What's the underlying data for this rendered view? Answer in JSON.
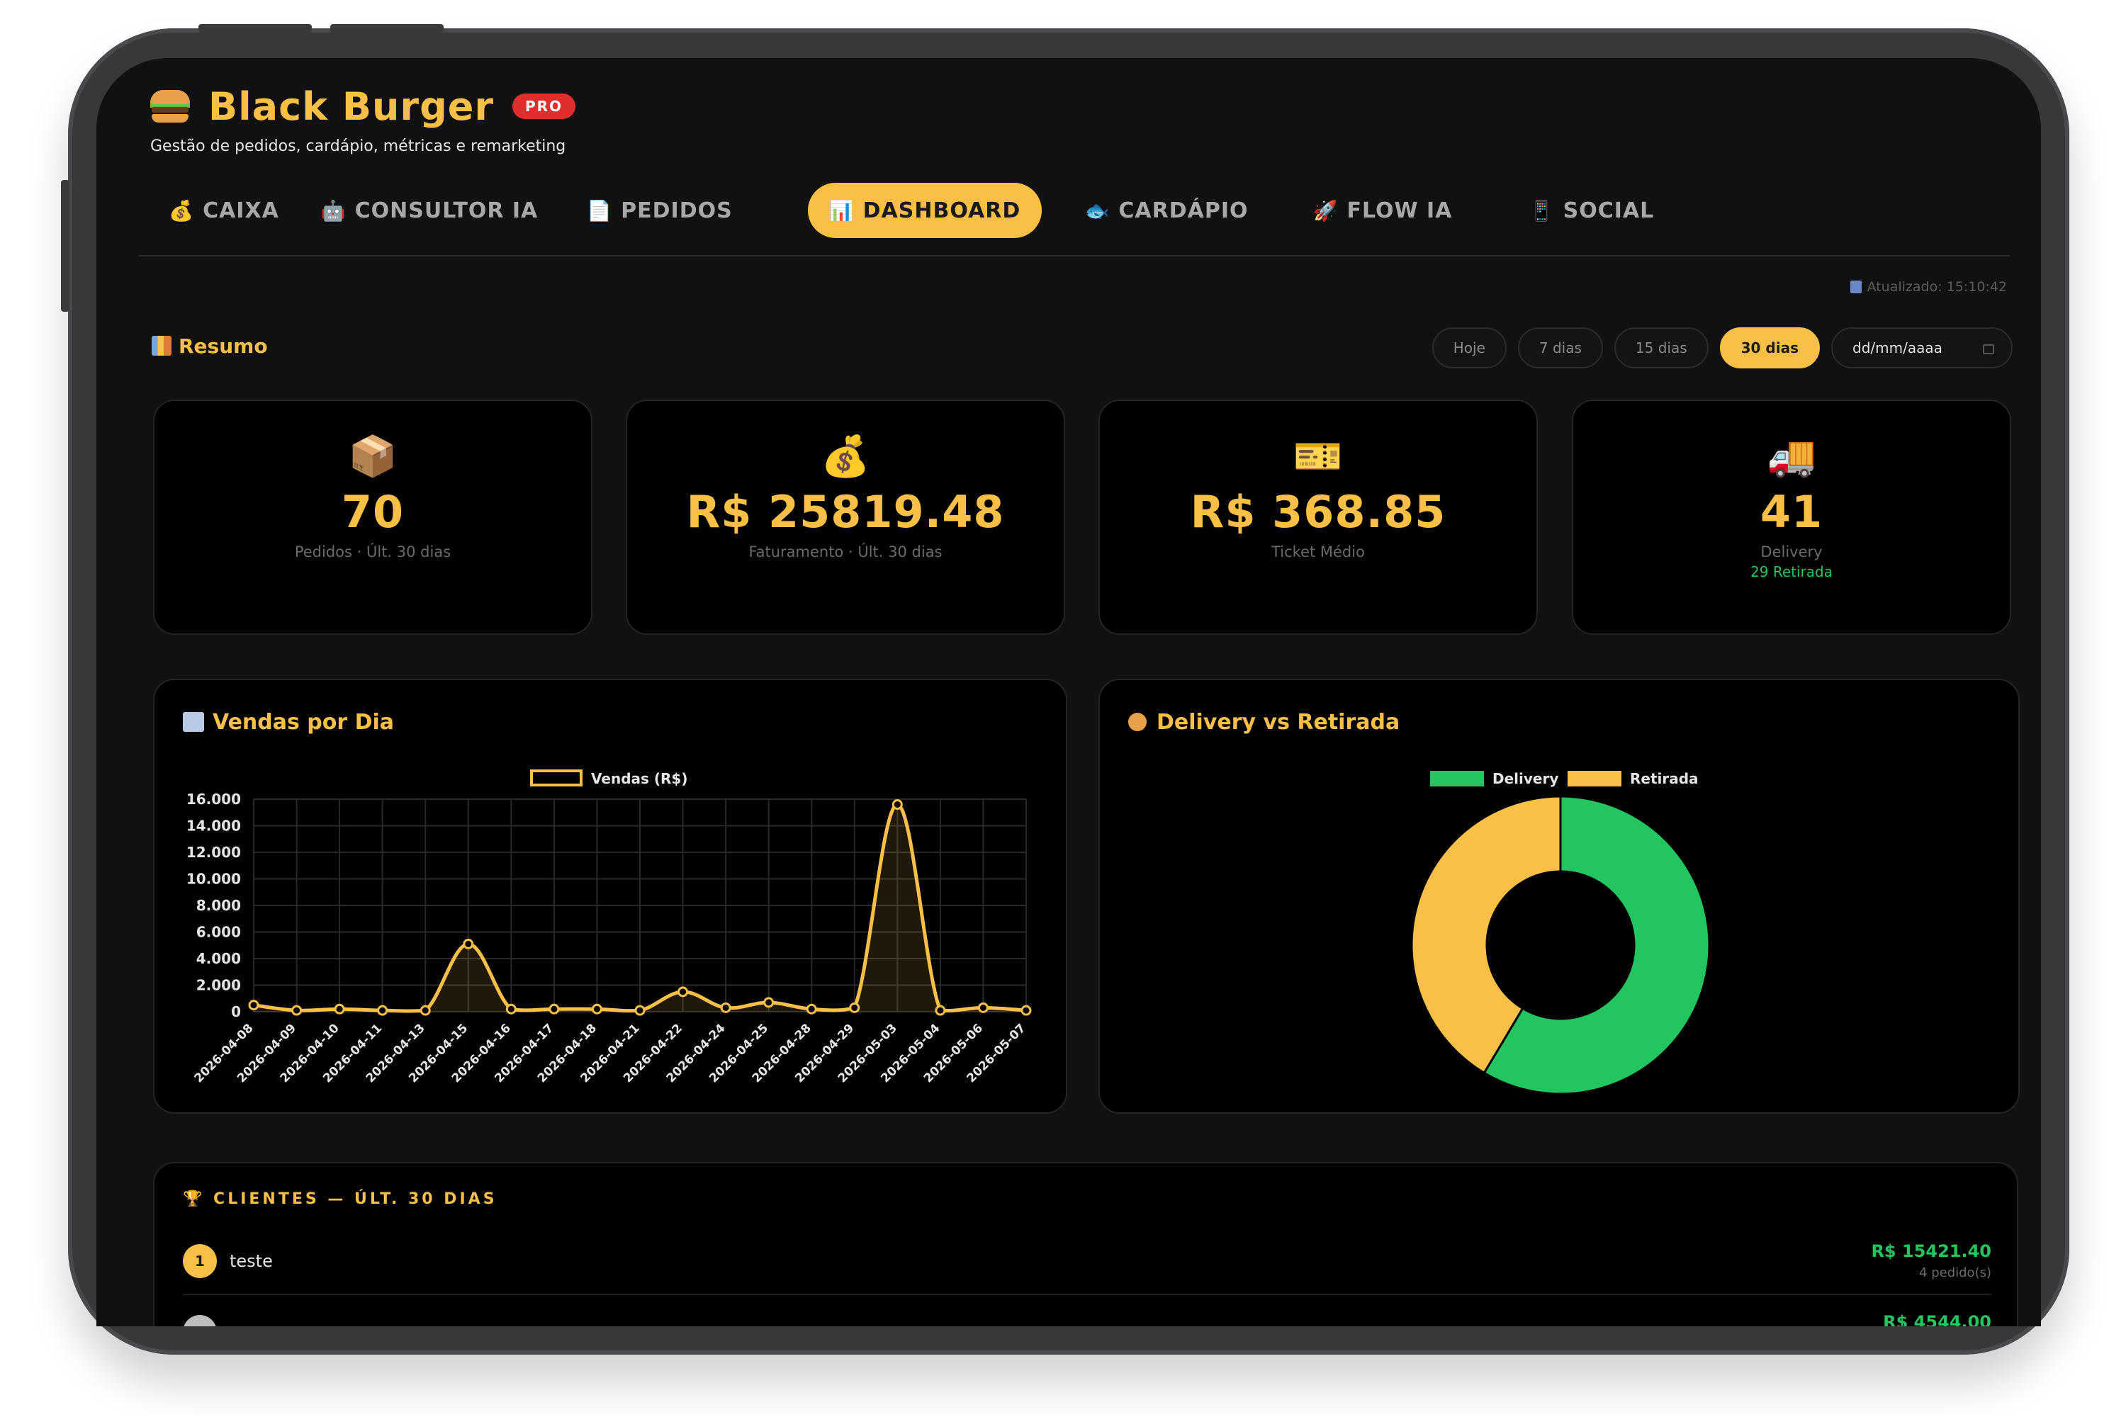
{
  "app": {
    "title": "Black Burger",
    "badge": "PRO",
    "subtitle": "Gestão de pedidos, cardápio, métricas e remarketing"
  },
  "tabs": [
    {
      "label": "CAIXA",
      "icon": "money-bag-icon",
      "glyph": "💰",
      "active": false
    },
    {
      "label": "CONSULTOR IA",
      "icon": "robot-icon",
      "glyph": "🤖",
      "active": false
    },
    {
      "label": "PEDIDOS",
      "icon": "receipt-icon",
      "glyph": "📄",
      "active": false
    },
    {
      "label": "DASHBOARD",
      "icon": "bar-chart-icon",
      "glyph": "📊",
      "active": true
    },
    {
      "label": "CARDÁPIO",
      "icon": "fish-icon",
      "glyph": "🐟",
      "active": false
    },
    {
      "label": "FLOW IA",
      "icon": "rocket-icon",
      "glyph": "🚀",
      "active": false
    },
    {
      "label": "SOCIAL",
      "icon": "phone-icon",
      "glyph": "📱",
      "active": false
    }
  ],
  "updated": "Atualizado: 15:10:42",
  "summary": {
    "title": "Resumo",
    "filters": [
      "Hoje",
      "7 dias",
      "15 dias",
      "30 dias"
    ],
    "active_filter": "30 dias",
    "date_placeholder": "dd/mm/aaaa"
  },
  "stats": [
    {
      "icon": "package-icon",
      "value": "70",
      "label": "Pedidos · Últ. 30 dias",
      "sub": ""
    },
    {
      "icon": "money-bag-icon",
      "value": "R$ 25819.48",
      "label": "Faturamento · Últ. 30 dias",
      "sub": ""
    },
    {
      "icon": "ticket-icon",
      "value": "R$ 368.85",
      "label": "Ticket Médio",
      "sub": ""
    },
    {
      "icon": "delivery-truck-icon",
      "value": "41",
      "label": "Delivery",
      "sub": "29 Retirada"
    }
  ],
  "charts": {
    "sales_title": "Vendas por Dia",
    "donut_title": "Delivery vs Retirada"
  },
  "chart_data": [
    {
      "type": "line",
      "title": "Vendas por Dia",
      "series": [
        {
          "name": "Vendas (R$)",
          "color": "#f9bf47",
          "values": [
            500,
            100,
            200,
            100,
            100,
            5100,
            200,
            200,
            200,
            100,
            1500,
            300,
            700,
            200,
            300,
            15600,
            100,
            300,
            100
          ]
        }
      ],
      "categories": [
        "2026-04-08",
        "2026-04-09",
        "2026-04-10",
        "2026-04-11",
        "2026-04-13",
        "2026-04-15",
        "2026-04-16",
        "2026-04-17",
        "2026-04-18",
        "2026-04-21",
        "2026-04-22",
        "2026-04-24",
        "2026-04-25",
        "2026-04-28",
        "2026-04-29",
        "2026-05-03",
        "2026-05-04",
        "2026-05-06",
        "2026-05-07"
      ],
      "ylim": [
        0,
        16000
      ],
      "yticks": [
        "16.000",
        "14.000",
        "12.000",
        "10.000",
        "8.000",
        "6.000",
        "4.000",
        "2.000",
        "0"
      ],
      "grid": true,
      "legend": "top"
    },
    {
      "type": "pie",
      "title": "Delivery vs Retirada",
      "labels": [
        "Delivery",
        "Retirada"
      ],
      "values": [
        41,
        29
      ],
      "colors": [
        "#22c55e",
        "#f9bf47"
      ],
      "legend": "top"
    }
  ],
  "clients": {
    "title": "🏆 CLIENTES — ÚLT. 30 DIAS",
    "rows": [
      {
        "rank": "1",
        "name": "teste",
        "amount": "R$ 15421.40",
        "orders": "4 pedido(s)"
      },
      {
        "rank": "",
        "name": "",
        "amount": "R$ 4544.00",
        "orders": ""
      }
    ]
  }
}
